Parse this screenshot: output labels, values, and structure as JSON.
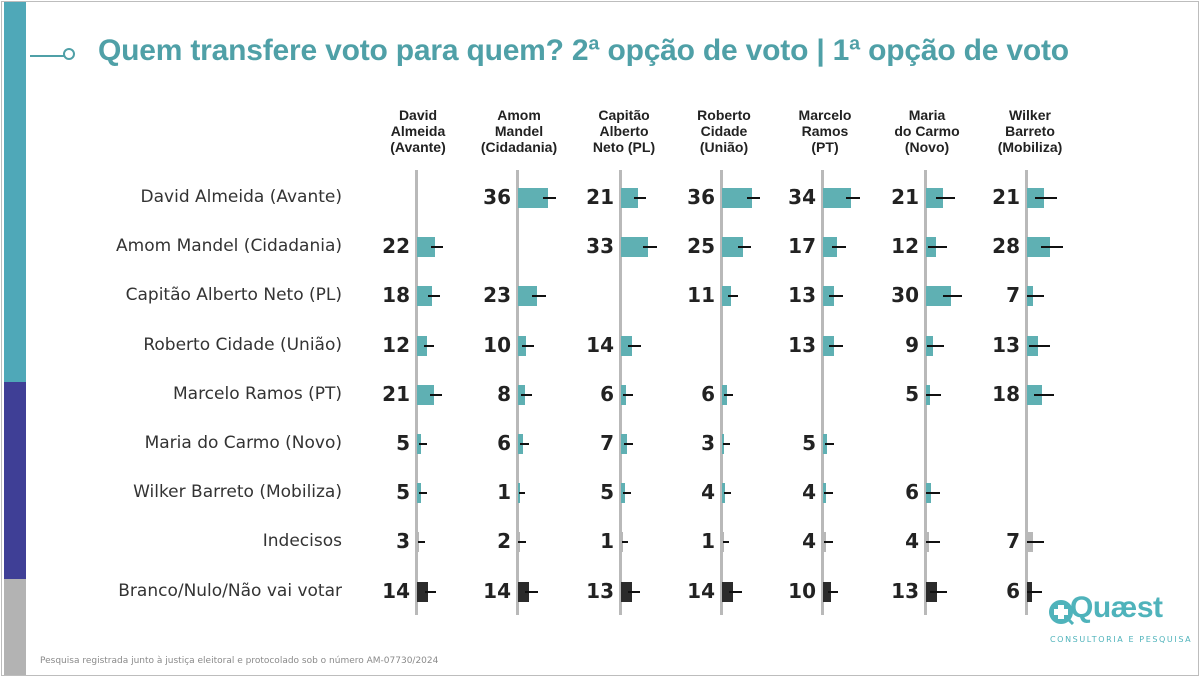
{
  "title": "Quem transfere voto para quem? 2ª opção de voto | 1ª opção de voto",
  "footnote": "Pesquisa registrada junto à justiça eleitoral e protocolado sob o número AM-07730/2024",
  "logo": {
    "name": "Quæst",
    "subtitle": "CONSULTORIA E PESQUISA"
  },
  "colors": {
    "teal": "#4fa0a7",
    "bar_teal": "#5fb0b3",
    "strip_teal": "#4fa8b8",
    "strip_purple": "#3f3f96",
    "strip_gray": "#b3b3b3",
    "bar_gray": "#b8b8b8",
    "bar_dark": "#2b2b2b"
  },
  "chart_data": {
    "type": "bar",
    "title": "Quem transfere voto para quem? 2ª opção de voto | 1ª opção de voto",
    "columns": [
      [
        "David",
        "Almeida",
        "(Avante)"
      ],
      [
        "Amom",
        "Mandel",
        "(Cidadania)"
      ],
      [
        "Capitão",
        "Alberto",
        "Neto (PL)"
      ],
      [
        "Roberto",
        "Cidade",
        "(União)"
      ],
      [
        "Marcelo",
        "Ramos",
        "(PT)"
      ],
      [
        "Maria",
        "do Carmo",
        "(Novo)"
      ],
      [
        "Wilker",
        "Barreto",
        "(Mobiliza)"
      ]
    ],
    "rows": [
      "David Almeida (Avante)",
      "Amom Mandel (Cidadania)",
      "Capitão Alberto Neto (PL)",
      "Roberto Cidade (União)",
      "Marcelo Ramos (PT)",
      "Maria do Carmo (Novo)",
      "Wilker Barreto (Mobiliza)",
      "Indecisos",
      "Branco/Nulo/Não vai votar"
    ],
    "row_styles": [
      "teal",
      "teal",
      "teal",
      "teal",
      "teal",
      "teal",
      "teal",
      "gray",
      "dark"
    ],
    "values": [
      [
        null,
        36,
        21,
        36,
        34,
        21,
        21
      ],
      [
        22,
        null,
        33,
        25,
        17,
        12,
        28
      ],
      [
        18,
        23,
        null,
        11,
        13,
        30,
        7
      ],
      [
        12,
        10,
        14,
        null,
        13,
        9,
        13
      ],
      [
        21,
        8,
        6,
        6,
        null,
        5,
        18
      ],
      [
        5,
        6,
        7,
        3,
        5,
        null,
        null
      ],
      [
        5,
        1,
        5,
        4,
        4,
        6,
        null
      ],
      [
        3,
        2,
        1,
        1,
        4,
        4,
        7
      ],
      [
        14,
        14,
        13,
        14,
        10,
        13,
        6
      ]
    ],
    "error_margins": [
      [
        null,
        6,
        5,
        6,
        6,
        9,
        11
      ],
      [
        5,
        null,
        6,
        6,
        6,
        9,
        11
      ],
      [
        5,
        6,
        null,
        4,
        6,
        9,
        8
      ],
      [
        4,
        5,
        5,
        null,
        6,
        8,
        10
      ],
      [
        5,
        4,
        4,
        3,
        null,
        7,
        10
      ],
      [
        2,
        3,
        3,
        2,
        3,
        null,
        null
      ],
      [
        2,
        1,
        2,
        2,
        3,
        6,
        null
      ],
      [
        2,
        2,
        1,
        1,
        3,
        6,
        8
      ],
      [
        4,
        5,
        5,
        5,
        4,
        8,
        7
      ]
    ],
    "xlim": [
      0,
      100
    ],
    "grid": false,
    "legend": "none"
  }
}
